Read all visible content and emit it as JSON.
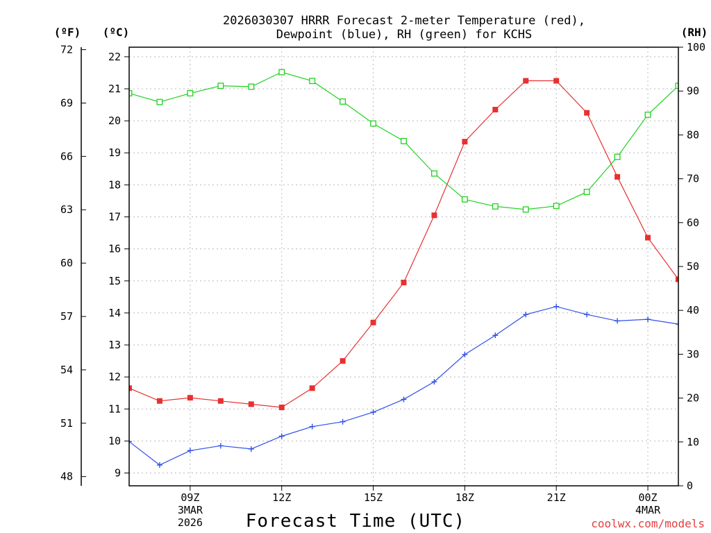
{
  "chart_data": {
    "type": "line",
    "title_line1": "2026030307 HRRR Forecast 2-meter Temperature (red),",
    "title_line2": "Dewpoint (blue), RH (green) for KCHS",
    "xlabel": "Forecast Time (UTC)",
    "credit": "coolwx.com/models",
    "unit_labels": {
      "fahrenheit": "(ºF)",
      "celsius": "(ºC)",
      "rh": "(RH)"
    },
    "x_hours": [
      7,
      8,
      9,
      10,
      11,
      12,
      13,
      14,
      15,
      16,
      17,
      18,
      19,
      20,
      21,
      22,
      23,
      24,
      25
    ],
    "xlim": [
      7,
      25
    ],
    "x_ticks": [
      {
        "hour": 9,
        "label": "09Z",
        "sub1": "3MAR",
        "sub2": "2026"
      },
      {
        "hour": 12,
        "label": "12Z",
        "sub1": "",
        "sub2": ""
      },
      {
        "hour": 15,
        "label": "15Z",
        "sub1": "",
        "sub2": ""
      },
      {
        "hour": 18,
        "label": "18Z",
        "sub1": "",
        "sub2": ""
      },
      {
        "hour": 21,
        "label": "21Z",
        "sub1": "",
        "sub2": ""
      },
      {
        "hour": 24,
        "label": "00Z",
        "sub1": "4MAR",
        "sub2": ""
      }
    ],
    "celsius_axis": {
      "ylim": [
        8.6,
        22.3
      ],
      "ticks": [
        "9",
        "10",
        "11",
        "12",
        "13",
        "14",
        "15",
        "16",
        "17",
        "18",
        "19",
        "20",
        "21",
        "22"
      ]
    },
    "fahrenheit_axis": {
      "ticks": [
        "48",
        "51",
        "54",
        "57",
        "60",
        "63",
        "66",
        "69",
        "72"
      ]
    },
    "rh_axis": {
      "ylim": [
        0,
        100
      ],
      "ticks": [
        "0",
        "10",
        "20",
        "30",
        "40",
        "50",
        "60",
        "70",
        "80",
        "90",
        "100"
      ]
    },
    "series": [
      {
        "name": "2-meter Temperature",
        "axis": "celsius",
        "color": "#e83030",
        "marker": "filled-square",
        "values": [
          11.65,
          11.25,
          11.35,
          11.25,
          11.15,
          11.05,
          11.65,
          12.5,
          13.7,
          14.95,
          17.05,
          19.35,
          20.35,
          21.25,
          21.25,
          20.25,
          18.25,
          16.35,
          15.05
        ]
      },
      {
        "name": "Dewpoint",
        "axis": "celsius",
        "color": "#3050e8",
        "marker": "plus",
        "values": [
          9.98,
          9.25,
          9.7,
          9.85,
          9.75,
          10.15,
          10.45,
          10.6,
          10.9,
          11.3,
          11.85,
          12.7,
          13.3,
          13.95,
          14.2,
          13.95,
          13.75,
          13.8,
          13.65
        ]
      },
      {
        "name": "RH",
        "axis": "rh",
        "color": "#20d020",
        "marker": "open-square",
        "values": [
          89.5,
          87.5,
          89.5,
          91.2,
          91.0,
          94.3,
          92.3,
          87.6,
          82.6,
          78.6,
          71.2,
          65.3,
          63.7,
          63.0,
          63.8,
          67.0,
          75.0,
          84.6,
          91.2
        ]
      }
    ]
  }
}
